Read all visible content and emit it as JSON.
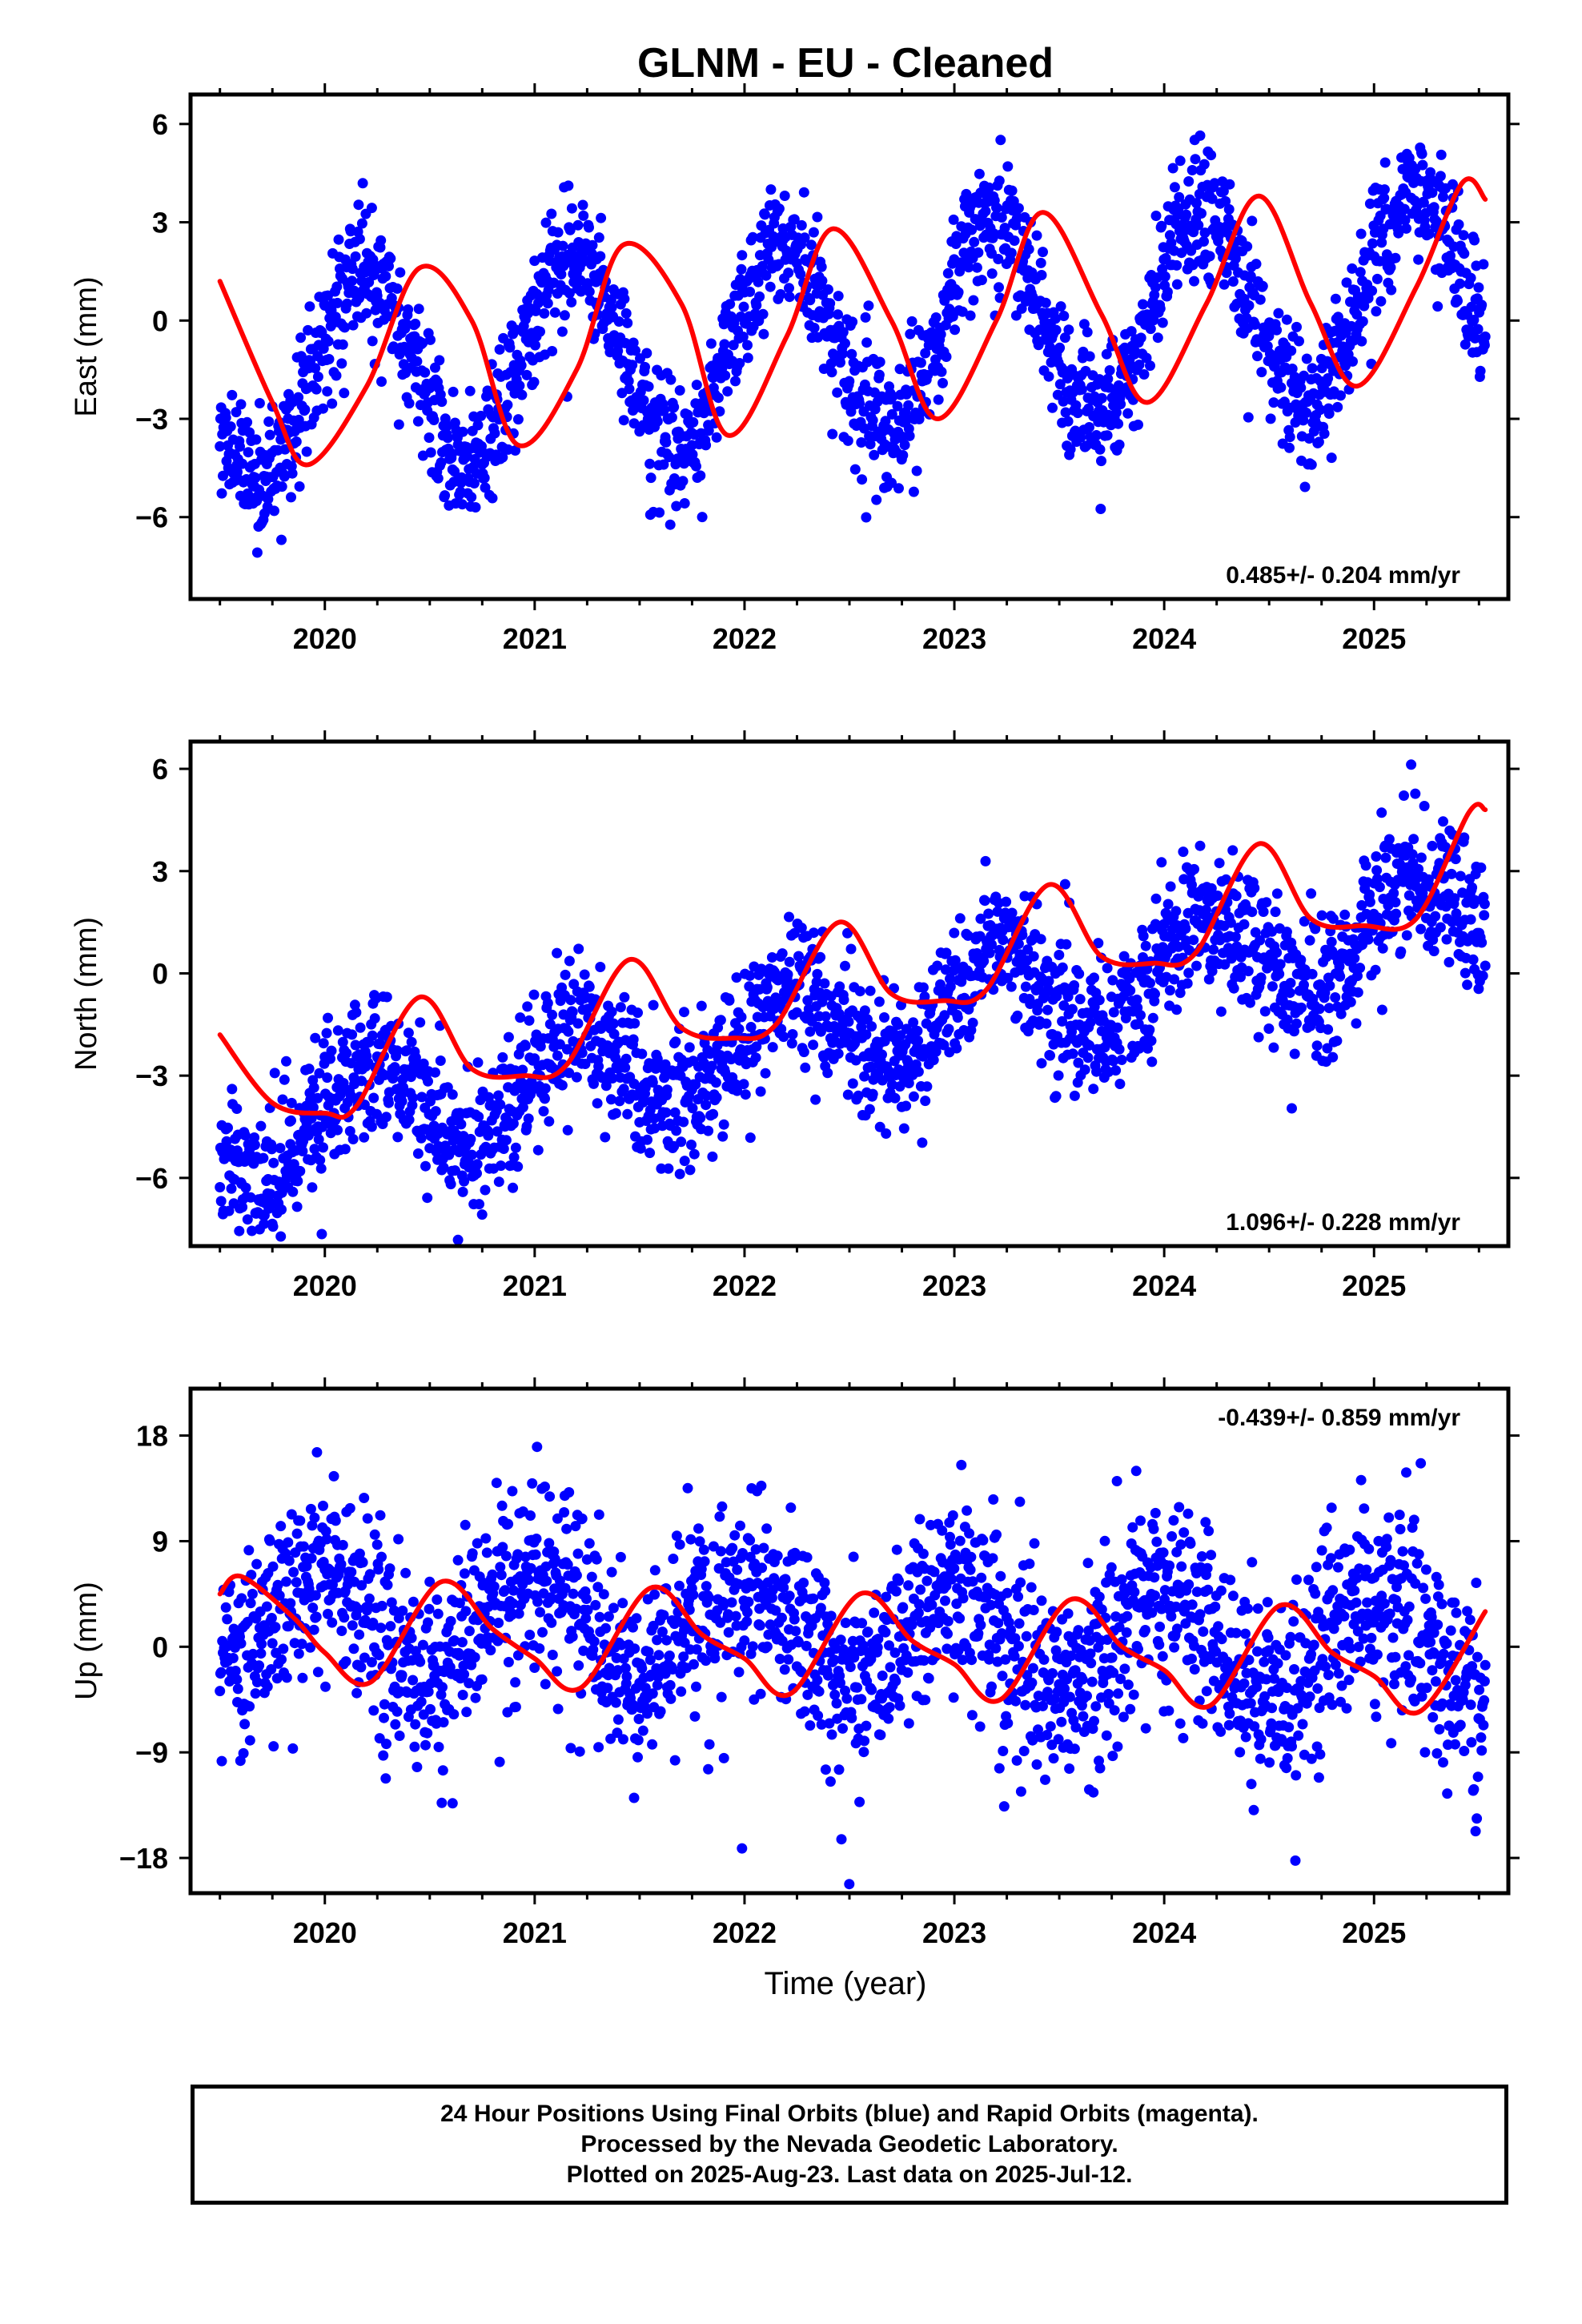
{
  "title": "GLNM  - EU - Cleaned",
  "xlabel": "Time (year)",
  "footer": {
    "line1": "24 Hour Positions Using Final Orbits (blue) and Rapid Orbits (magenta).",
    "line2": "Processed by the Nevada Geodetic Laboratory.",
    "line3": "Plotted on 2025-Aug-23. Last data on 2025-Jul-12."
  },
  "colors": {
    "final_orbits": "#0000ff",
    "rapid_orbits": "#ff00ff",
    "fit": "#ff0000"
  },
  "chart_data": [
    {
      "type": "scatter",
      "ylabel": "East (mm)",
      "rate_label": "0.485+/- 0.204 mm/yr",
      "xlim": [
        2019.36,
        2025.64
      ],
      "ylim": [
        -8.5,
        6.9
      ],
      "xticks": [
        2020,
        2021,
        2022,
        2023,
        2024,
        2025
      ],
      "yticks": [
        -6,
        -3,
        0,
        3,
        6
      ],
      "ytick_labels": [
        "−6",
        "−3",
        "0",
        "3",
        "6"
      ],
      "series": [
        {
          "kind": "points",
          "x_start": 2019.5,
          "x_end": 2025.53,
          "trend": 0.485,
          "amplitude": 3.0,
          "phase": 0.93,
          "offset": -0.45,
          "scatter": 1.0
        },
        {
          "kind": "fit",
          "x": [
            2019.5,
            2019.75,
            2019.92,
            2020.2,
            2020.45,
            2020.7,
            2020.92,
            2021.2,
            2021.42,
            2021.7,
            2021.92,
            2022.2,
            2022.42,
            2022.7,
            2022.92,
            2023.2,
            2023.42,
            2023.7,
            2023.92,
            2024.2,
            2024.45,
            2024.7,
            2024.92,
            2025.2,
            2025.42,
            2025.53
          ],
          "y": [
            1.2,
            -2.5,
            -4.4,
            -2.0,
            1.6,
            0.0,
            -3.8,
            -1.5,
            2.3,
            0.5,
            -3.5,
            -0.5,
            2.8,
            0.0,
            -3.0,
            0.0,
            3.3,
            0.2,
            -2.5,
            0.5,
            3.8,
            0.5,
            -2.0,
            1.0,
            4.2,
            3.7
          ]
        }
      ]
    },
    {
      "type": "scatter",
      "ylabel": "North (mm)",
      "rate_label": "1.096+/- 0.228 mm/yr",
      "xlim": [
        2019.36,
        2025.64
      ],
      "ylim": [
        -8.0,
        6.8
      ],
      "xticks": [
        2020,
        2021,
        2022,
        2023,
        2024,
        2025
      ],
      "yticks": [
        -6,
        -3,
        0,
        3,
        6
      ],
      "ytick_labels": [
        "−6",
        "−3",
        "0",
        "3",
        "6"
      ],
      "series": [
        {
          "kind": "points",
          "x_start": 2019.5,
          "x_end": 2025.53,
          "trend": 1.096,
          "amplitude": 1.4,
          "phase": 0.95,
          "offset": -1.6,
          "scatter": 1.0
        },
        {
          "kind": "fit",
          "x": [
            2019.5,
            2019.75,
            2020.0,
            2020.15,
            2020.45,
            2020.7,
            2020.95,
            2021.15,
            2021.45,
            2021.7,
            2021.95,
            2022.15,
            2022.45,
            2022.7,
            2022.95,
            2023.15,
            2023.45,
            2023.7,
            2023.95,
            2024.15,
            2024.45,
            2024.7,
            2024.95,
            2025.2,
            2025.45,
            2025.53
          ],
          "y": [
            -1.8,
            -3.8,
            -4.1,
            -3.9,
            -0.7,
            -2.8,
            -3.0,
            -2.7,
            0.4,
            -1.6,
            -1.9,
            -1.5,
            1.5,
            -0.6,
            -0.8,
            -0.5,
            2.6,
            0.5,
            0.3,
            0.6,
            3.8,
            1.6,
            1.4,
            1.6,
            4.7,
            4.8
          ]
        }
      ]
    },
    {
      "type": "scatter",
      "ylabel": "Up (mm)",
      "rate_label": "-0.439+/- 0.859 mm/yr",
      "xlim": [
        2019.36,
        2025.64
      ],
      "ylim": [
        -21.0,
        22.0
      ],
      "xticks": [
        2020,
        2021,
        2022,
        2023,
        2024,
        2025
      ],
      "yticks": [
        -18,
        -9,
        0,
        9,
        18
      ],
      "ytick_labels": [
        "−18",
        "−9",
        "0",
        "9",
        "18"
      ],
      "series": [
        {
          "kind": "points",
          "x_start": 2019.5,
          "x_end": 2025.53,
          "trend": -0.439,
          "amplitude": 4.0,
          "phase": 0.75,
          "offset": 1.2,
          "scatter": 4.2
        },
        {
          "kind": "fit",
          "x": [
            2019.5,
            2019.6,
            2019.85,
            2020.0,
            2020.22,
            2020.55,
            2020.8,
            2021.0,
            2021.22,
            2021.55,
            2021.8,
            2022.0,
            2022.22,
            2022.55,
            2022.8,
            2023.0,
            2023.22,
            2023.55,
            2023.8,
            2024.0,
            2024.22,
            2024.55,
            2024.8,
            2025.0,
            2025.22,
            2025.53
          ],
          "y": [
            4.5,
            6.0,
            2.5,
            -0.5,
            -3.0,
            5.5,
            1.5,
            -1.0,
            -3.5,
            5.0,
            1.0,
            -1.0,
            -4.0,
            4.5,
            0.5,
            -1.5,
            -4.5,
            4.0,
            0.0,
            -2.0,
            -5.0,
            3.5,
            -0.5,
            -2.5,
            -5.5,
            3.0
          ]
        }
      ]
    }
  ]
}
